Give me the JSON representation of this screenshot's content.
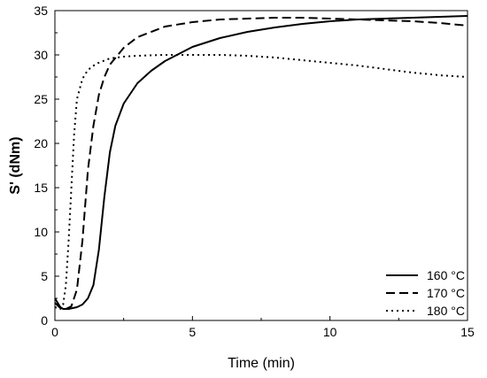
{
  "chart_data": {
    "type": "line",
    "title": "",
    "xlabel": "Time (min)",
    "ylabel": "S' (dNm)",
    "xlim": [
      0,
      15
    ],
    "ylim": [
      0,
      35
    ],
    "xticks": [
      0,
      5,
      10,
      15
    ],
    "yticks": [
      0,
      5,
      10,
      15,
      20,
      25,
      30,
      35
    ],
    "grid": false,
    "legend_position": "bottom-right",
    "series": [
      {
        "name": "160 °C",
        "dash": "solid",
        "x": [
          0,
          0.2,
          0.3,
          0.5,
          0.8,
          1.0,
          1.2,
          1.4,
          1.6,
          1.8,
          2.0,
          2.2,
          2.5,
          3.0,
          3.5,
          4.0,
          5.0,
          6.0,
          7.0,
          8.0,
          9.0,
          10.0,
          11.0,
          12.0,
          13.0,
          14.0,
          15.0
        ],
        "y": [
          2.5,
          1.5,
          1.3,
          1.3,
          1.5,
          1.8,
          2.5,
          4.0,
          8.0,
          14.0,
          19.0,
          22.0,
          24.5,
          26.8,
          28.2,
          29.3,
          30.9,
          31.9,
          32.6,
          33.1,
          33.5,
          33.8,
          34.0,
          34.1,
          34.2,
          34.3,
          34.4
        ]
      },
      {
        "name": "170 °C",
        "dash": "dashed",
        "x": [
          0,
          0.2,
          0.4,
          0.6,
          0.8,
          1.0,
          1.2,
          1.4,
          1.6,
          1.8,
          2.0,
          2.5,
          3.0,
          4.0,
          5.0,
          6.0,
          7.0,
          8.0,
          9.0,
          10.0,
          11.0,
          12.0,
          13.0,
          14.0,
          15.0
        ],
        "y": [
          2.0,
          1.4,
          1.3,
          1.6,
          3.5,
          9.0,
          17.0,
          22.0,
          25.5,
          27.5,
          28.9,
          30.8,
          32.0,
          33.2,
          33.7,
          34.0,
          34.1,
          34.2,
          34.2,
          34.1,
          34.0,
          33.9,
          33.8,
          33.6,
          33.3
        ]
      },
      {
        "name": "180 °C",
        "dash": "dotted",
        "x": [
          0,
          0.2,
          0.3,
          0.4,
          0.5,
          0.6,
          0.7,
          0.8,
          1.0,
          1.2,
          1.5,
          2.0,
          2.5,
          3.0,
          4.0,
          5.0,
          6.0,
          7.0,
          8.0,
          9.0,
          10.0,
          11.0,
          12.0,
          13.0,
          14.0,
          15.0
        ],
        "y": [
          1.5,
          1.3,
          1.8,
          4.0,
          9.0,
          15.0,
          21.0,
          25.0,
          27.3,
          28.3,
          29.0,
          29.6,
          29.8,
          29.9,
          30.0,
          30.0,
          30.0,
          29.9,
          29.7,
          29.4,
          29.1,
          28.8,
          28.4,
          28.0,
          27.7,
          27.5
        ]
      }
    ]
  }
}
